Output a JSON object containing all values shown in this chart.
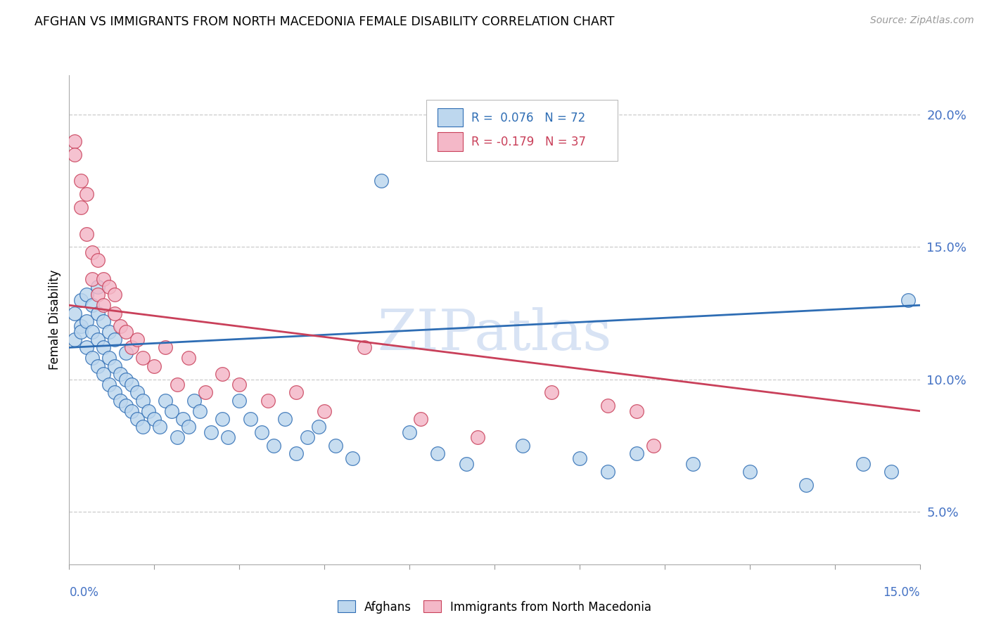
{
  "title": "AFGHAN VS IMMIGRANTS FROM NORTH MACEDONIA FEMALE DISABILITY CORRELATION CHART",
  "source": "Source: ZipAtlas.com",
  "ylabel": "Female Disability",
  "right_yticks": [
    "5.0%",
    "10.0%",
    "15.0%",
    "20.0%"
  ],
  "right_ytick_vals": [
    0.05,
    0.1,
    0.15,
    0.2
  ],
  "xlim": [
    0.0,
    0.15
  ],
  "ylim": [
    0.03,
    0.215
  ],
  "color_blue": "#BDD7EE",
  "color_pink": "#F4B8C8",
  "line_blue": "#2E6DB4",
  "line_pink": "#C9405A",
  "watermark_color": "#C8D8F0",
  "grid_color": "#CCCCCC",
  "afghans_x": [
    0.001,
    0.001,
    0.002,
    0.002,
    0.002,
    0.003,
    0.003,
    0.003,
    0.004,
    0.004,
    0.004,
    0.005,
    0.005,
    0.005,
    0.005,
    0.006,
    0.006,
    0.006,
    0.007,
    0.007,
    0.007,
    0.008,
    0.008,
    0.008,
    0.009,
    0.009,
    0.01,
    0.01,
    0.01,
    0.011,
    0.011,
    0.012,
    0.012,
    0.013,
    0.013,
    0.014,
    0.015,
    0.016,
    0.017,
    0.018,
    0.019,
    0.02,
    0.021,
    0.022,
    0.023,
    0.025,
    0.027,
    0.028,
    0.03,
    0.032,
    0.034,
    0.036,
    0.038,
    0.04,
    0.042,
    0.044,
    0.047,
    0.05,
    0.055,
    0.06,
    0.065,
    0.07,
    0.08,
    0.09,
    0.095,
    0.1,
    0.11,
    0.12,
    0.13,
    0.14,
    0.145,
    0.148
  ],
  "afghans_y": [
    0.115,
    0.125,
    0.12,
    0.13,
    0.118,
    0.112,
    0.122,
    0.132,
    0.108,
    0.118,
    0.128,
    0.105,
    0.115,
    0.125,
    0.135,
    0.102,
    0.112,
    0.122,
    0.098,
    0.108,
    0.118,
    0.095,
    0.105,
    0.115,
    0.092,
    0.102,
    0.09,
    0.1,
    0.11,
    0.088,
    0.098,
    0.085,
    0.095,
    0.082,
    0.092,
    0.088,
    0.085,
    0.082,
    0.092,
    0.088,
    0.078,
    0.085,
    0.082,
    0.092,
    0.088,
    0.08,
    0.085,
    0.078,
    0.092,
    0.085,
    0.08,
    0.075,
    0.085,
    0.072,
    0.078,
    0.082,
    0.075,
    0.07,
    0.175,
    0.08,
    0.072,
    0.068,
    0.075,
    0.07,
    0.065,
    0.072,
    0.068,
    0.065,
    0.06,
    0.068,
    0.065,
    0.13
  ],
  "macedonia_x": [
    0.001,
    0.001,
    0.002,
    0.002,
    0.003,
    0.003,
    0.004,
    0.004,
    0.005,
    0.005,
    0.006,
    0.006,
    0.007,
    0.008,
    0.008,
    0.009,
    0.01,
    0.011,
    0.012,
    0.013,
    0.015,
    0.017,
    0.019,
    0.021,
    0.024,
    0.027,
    0.03,
    0.035,
    0.04,
    0.045,
    0.052,
    0.062,
    0.072,
    0.085,
    0.095,
    0.1,
    0.103
  ],
  "macedonia_y": [
    0.19,
    0.185,
    0.175,
    0.165,
    0.155,
    0.17,
    0.148,
    0.138,
    0.145,
    0.132,
    0.138,
    0.128,
    0.135,
    0.125,
    0.132,
    0.12,
    0.118,
    0.112,
    0.115,
    0.108,
    0.105,
    0.112,
    0.098,
    0.108,
    0.095,
    0.102,
    0.098,
    0.092,
    0.095,
    0.088,
    0.112,
    0.085,
    0.078,
    0.095,
    0.09,
    0.088,
    0.075
  ]
}
